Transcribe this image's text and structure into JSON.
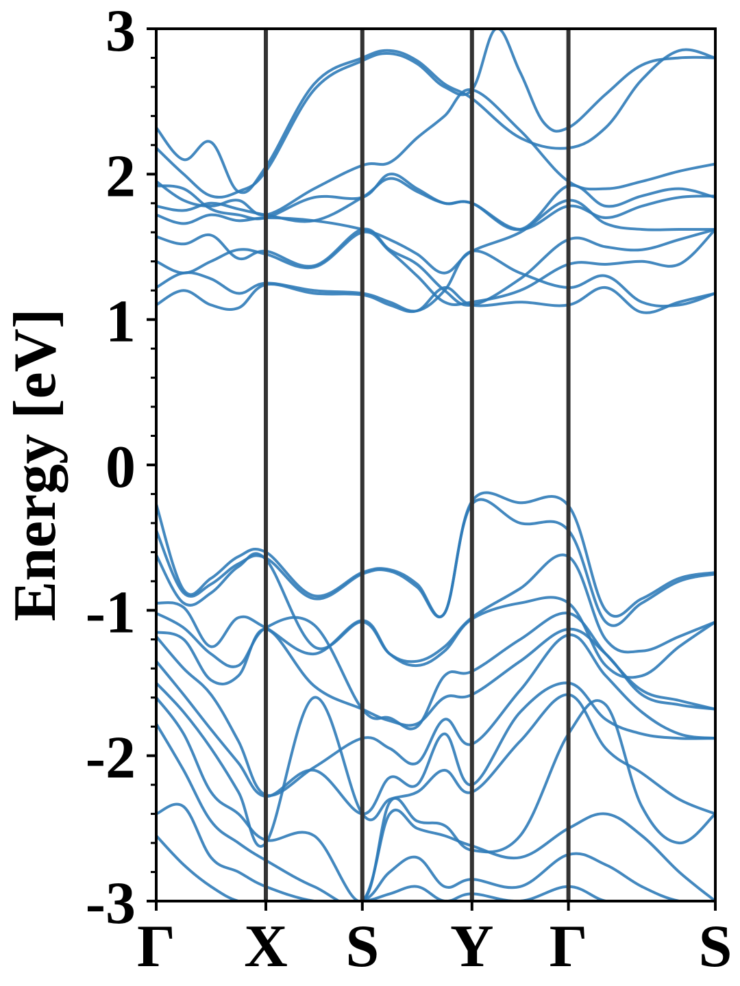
{
  "chart_data": {
    "type": "line",
    "title": "",
    "xlabel": "",
    "ylabel": "Energy [eV]",
    "ylim": [
      -3,
      3
    ],
    "yticks": [
      "3",
      "2",
      "1",
      "0",
      "-1",
      "-2",
      "-3"
    ],
    "ytick_values": [
      3,
      2,
      1,
      0,
      -1,
      -2,
      -3
    ],
    "yminor_step": 0.2,
    "xlim": [
      0,
      5.1
    ],
    "kpath": [
      {
        "label": "Γ",
        "x": 0
      },
      {
        "label": "X",
        "x": 1.0
      },
      {
        "label": "S",
        "x": 1.88
      },
      {
        "label": "Y",
        "x": 2.88
      },
      {
        "label": "Γ",
        "x": 3.76
      },
      {
        "label": "S",
        "x": 5.1
      }
    ],
    "grid": false,
    "colors": {
      "bands": "#2f7bb8",
      "kpoint_lines": "#333333",
      "axes": "#000000"
    },
    "series": [
      {
        "x": [
          0,
          0.25,
          0.5,
          0.75,
          1.0,
          1.44,
          1.88,
          2.13,
          2.38,
          2.63,
          2.88,
          3.32,
          3.76,
          4.1,
          4.43,
          4.77,
          5.1
        ],
        "values": [
          2.32,
          2.1,
          2.22,
          1.88,
          2.05,
          2.62,
          2.8,
          2.85,
          2.78,
          2.62,
          2.52,
          2.25,
          2.18,
          2.32,
          2.65,
          2.85,
          2.8
        ]
      },
      {
        "x": [
          0,
          0.25,
          0.5,
          0.75,
          1.0,
          1.44,
          1.88,
          2.13,
          2.38,
          2.63,
          2.88,
          3.1,
          3.32,
          3.54,
          3.76,
          4.1,
          4.43,
          4.77,
          5.1
        ],
        "values": [
          2.18,
          2.0,
          1.85,
          1.88,
          2.02,
          2.58,
          2.78,
          2.83,
          2.76,
          2.6,
          2.58,
          3.0,
          2.7,
          2.35,
          2.32,
          2.55,
          2.75,
          2.8,
          2.8
        ]
      },
      {
        "x": [
          0,
          0.25,
          0.5,
          0.75,
          1.0,
          1.44,
          1.88,
          2.13,
          2.38,
          2.63,
          2.88,
          3.32,
          3.76,
          4.1,
          4.43,
          4.77,
          5.1
        ],
        "values": [
          1.95,
          1.82,
          1.78,
          1.82,
          1.72,
          1.9,
          2.06,
          2.08,
          2.25,
          2.4,
          2.58,
          2.3,
          1.95,
          1.9,
          1.95,
          2.02,
          2.07
        ]
      },
      {
        "x": [
          0,
          0.25,
          0.5,
          0.75,
          1.0,
          1.44,
          1.88,
          2.13,
          2.38,
          2.63,
          2.88,
          3.32,
          3.76,
          4.1,
          4.43,
          4.77,
          5.1
        ],
        "values": [
          1.92,
          1.9,
          1.76,
          1.72,
          1.7,
          1.84,
          1.84,
          2.0,
          1.9,
          1.8,
          1.8,
          1.62,
          1.92,
          1.78,
          1.85,
          1.9,
          1.84
        ]
      },
      {
        "x": [
          0,
          0.25,
          0.5,
          0.75,
          1.0,
          1.44,
          1.88,
          2.13,
          2.38,
          2.63,
          2.88,
          3.32,
          3.76,
          4.1,
          4.43,
          4.77,
          5.1
        ],
        "values": [
          1.78,
          1.75,
          1.8,
          1.76,
          1.72,
          1.68,
          1.84,
          1.97,
          1.88,
          1.8,
          1.8,
          1.62,
          1.78,
          1.7,
          1.78,
          1.84,
          1.85
        ]
      },
      {
        "x": [
          0,
          0.25,
          0.5,
          0.75,
          1.0,
          1.44,
          1.88,
          2.13,
          2.38,
          2.63,
          2.88,
          3.32,
          3.76,
          4.1,
          4.43,
          4.77,
          5.1
        ],
        "values": [
          1.72,
          1.66,
          1.72,
          1.68,
          1.7,
          1.68,
          1.62,
          1.55,
          1.45,
          1.32,
          1.47,
          1.6,
          1.82,
          1.66,
          1.62,
          1.62,
          1.62
        ]
      },
      {
        "x": [
          0,
          0.25,
          0.5,
          0.75,
          1.0,
          1.44,
          1.88,
          2.13,
          2.38,
          2.63,
          2.88,
          3.32,
          3.76,
          4.1,
          4.43,
          4.77,
          5.1
        ],
        "values": [
          1.57,
          1.52,
          1.58,
          1.42,
          1.47,
          1.37,
          1.62,
          1.48,
          1.38,
          1.2,
          1.1,
          1.28,
          1.55,
          1.5,
          1.48,
          1.55,
          1.62
        ]
      },
      {
        "x": [
          0,
          0.25,
          0.5,
          0.75,
          1.0,
          1.44,
          1.88,
          2.13,
          2.38,
          2.63,
          2.88,
          3.32,
          3.76,
          4.1,
          4.43,
          4.77,
          5.1
        ],
        "values": [
          1.4,
          1.32,
          1.4,
          1.48,
          1.45,
          1.36,
          1.6,
          1.47,
          1.3,
          1.12,
          1.12,
          1.2,
          1.38,
          1.38,
          1.4,
          1.38,
          1.62
        ]
      },
      {
        "x": [
          0,
          0.25,
          0.5,
          0.75,
          1.0,
          1.44,
          1.88,
          2.13,
          2.38,
          2.63,
          2.88,
          3.32,
          3.76,
          4.1,
          4.43,
          4.77,
          5.1
        ],
        "values": [
          1.22,
          1.32,
          1.28,
          1.18,
          1.25,
          1.2,
          1.18,
          1.12,
          1.06,
          1.2,
          1.47,
          1.32,
          1.22,
          1.3,
          1.12,
          1.1,
          1.18
        ]
      },
      {
        "x": [
          0,
          0.25,
          0.5,
          0.75,
          1.0,
          1.44,
          1.88,
          2.13,
          2.38,
          2.63,
          2.88,
          3.32,
          3.76,
          4.1,
          4.43,
          4.77,
          5.1
        ],
        "values": [
          1.1,
          1.2,
          1.1,
          1.08,
          1.24,
          1.18,
          1.17,
          1.1,
          1.06,
          1.22,
          1.1,
          1.12,
          1.1,
          1.22,
          1.05,
          1.12,
          1.18
        ]
      },
      {
        "x": [
          0,
          0.25,
          0.5,
          0.75,
          1.0,
          1.44,
          1.88,
          2.13,
          2.38,
          2.63,
          2.88,
          3.32,
          3.76,
          4.1,
          4.43,
          4.77,
          5.1
        ],
        "values": [
          -0.27,
          -0.86,
          -0.78,
          -0.63,
          -0.6,
          -0.9,
          -0.74,
          -0.72,
          -0.82,
          -1.02,
          -0.25,
          -0.26,
          -0.28,
          -1.0,
          -0.92,
          -0.78,
          -0.74
        ]
      },
      {
        "x": [
          0,
          0.25,
          0.5,
          0.75,
          1.0,
          1.44,
          1.88,
          2.13,
          2.38,
          2.63,
          2.88,
          3.32,
          3.76,
          4.1,
          4.43,
          4.77,
          5.1
        ],
        "values": [
          -0.45,
          -0.88,
          -0.82,
          -0.68,
          -0.64,
          -0.92,
          -0.75,
          -0.73,
          -0.84,
          -1.02,
          -0.27,
          -0.4,
          -0.45,
          -1.08,
          -0.95,
          -0.8,
          -0.75
        ]
      },
      {
        "x": [
          0,
          0.25,
          0.5,
          0.75,
          1.0,
          1.44,
          1.88,
          2.13,
          2.38,
          2.63,
          2.88,
          3.32,
          3.76,
          4.1,
          4.43,
          4.77,
          5.1
        ],
        "values": [
          -0.62,
          -0.95,
          -0.88,
          -0.7,
          -0.65,
          -1.25,
          -1.08,
          -1.3,
          -1.35,
          -1.25,
          -1.05,
          -0.85,
          -0.63,
          -1.2,
          -1.28,
          -1.18,
          -1.08
        ]
      },
      {
        "x": [
          0,
          0.25,
          0.5,
          0.75,
          1.0,
          1.44,
          1.88,
          2.13,
          2.38,
          2.63,
          2.88,
          3.32,
          3.76,
          4.1,
          4.43,
          4.77,
          5.1
        ],
        "values": [
          -0.95,
          -0.98,
          -1.25,
          -1.05,
          -1.12,
          -1.3,
          -1.07,
          -1.3,
          -1.38,
          -1.28,
          -1.06,
          -0.95,
          -0.95,
          -1.38,
          -1.45,
          -1.25,
          -1.08
        ]
      },
      {
        "x": [
          0,
          0.25,
          0.5,
          0.75,
          1.0,
          1.44,
          1.88,
          2.13,
          2.38,
          2.63,
          2.88,
          3.32,
          3.76,
          4.1,
          4.43,
          4.77,
          5.1
        ],
        "values": [
          -1.02,
          -1.12,
          -1.3,
          -1.38,
          -1.12,
          -1.1,
          -1.68,
          -1.74,
          -1.8,
          -1.45,
          -1.42,
          -1.2,
          -1.02,
          -1.3,
          -1.55,
          -1.62,
          -1.68
        ]
      },
      {
        "x": [
          0,
          0.25,
          0.5,
          0.75,
          1.0,
          1.44,
          1.88,
          2.13,
          2.38,
          2.63,
          2.88,
          3.32,
          3.76,
          4.1,
          4.43,
          4.77,
          5.1
        ],
        "values": [
          -1.15,
          -1.2,
          -1.48,
          -1.45,
          -1.13,
          -1.52,
          -1.68,
          -1.76,
          -1.78,
          -1.6,
          -1.58,
          -1.35,
          -1.13,
          -1.3,
          -1.58,
          -1.65,
          -1.68
        ]
      },
      {
        "x": [
          0,
          0.25,
          0.5,
          0.75,
          1.0,
          1.44,
          1.88,
          2.13,
          2.38,
          2.63,
          2.88,
          3.32,
          3.76,
          4.1,
          4.43,
          4.77,
          5.1
        ],
        "values": [
          -1.18,
          -1.4,
          -1.58,
          -1.9,
          -2.27,
          -2.08,
          -1.88,
          -1.95,
          -2.05,
          -1.75,
          -1.92,
          -1.55,
          -1.17,
          -1.45,
          -1.7,
          -1.85,
          -1.88
        ]
      },
      {
        "x": [
          0,
          0.25,
          0.5,
          0.75,
          1.0,
          1.44,
          1.88,
          2.13,
          2.38,
          2.63,
          2.88,
          3.32,
          3.76,
          4.1,
          4.43,
          4.77,
          5.1
        ],
        "values": [
          -1.35,
          -1.58,
          -1.82,
          -2.05,
          -2.28,
          -2.1,
          -2.4,
          -2.15,
          -2.2,
          -1.85,
          -2.2,
          -1.7,
          -1.5,
          -1.75,
          -1.85,
          -1.88,
          -1.88
        ]
      },
      {
        "x": [
          0,
          0.25,
          0.5,
          0.75,
          1.0,
          1.44,
          1.88,
          2.13,
          2.38,
          2.63,
          2.88,
          3.32,
          3.76,
          4.1,
          4.43,
          4.77,
          5.1
        ],
        "values": [
          -1.5,
          -1.7,
          -1.95,
          -2.25,
          -2.6,
          -1.6,
          -2.4,
          -2.3,
          -2.25,
          -2.1,
          -2.25,
          -1.9,
          -1.58,
          -1.95,
          -2.12,
          -2.3,
          -2.4
        ]
      },
      {
        "x": [
          0,
          0.25,
          0.5,
          0.75,
          1.0,
          1.44,
          1.88,
          2.13,
          2.38,
          2.63,
          2.88,
          3.32,
          3.76,
          4.1,
          4.43,
          4.77,
          5.1
        ],
        "values": [
          -1.6,
          -1.85,
          -2.25,
          -2.4,
          -2.58,
          -2.55,
          -3.0,
          -2.32,
          -2.45,
          -2.48,
          -2.65,
          -2.55,
          -1.85,
          -1.65,
          -2.35,
          -2.6,
          -2.4
        ]
      },
      {
        "x": [
          0,
          0.25,
          0.5,
          0.75,
          1.0,
          1.44,
          1.88,
          2.13,
          2.38,
          2.63,
          2.88,
          3.32,
          3.76,
          4.1,
          4.43,
          4.77,
          5.1
        ],
        "values": [
          -1.78,
          -2.1,
          -2.45,
          -2.6,
          -2.72,
          -2.9,
          -3.0,
          -2.4,
          -2.5,
          -2.55,
          -2.62,
          -2.7,
          -2.5,
          -2.4,
          -2.55,
          -2.8,
          -3.0
        ]
      },
      {
        "x": [
          0,
          0.25,
          0.5,
          0.75,
          1.0,
          1.44,
          1.88,
          2.13,
          2.38,
          2.63,
          2.88,
          3.32,
          3.76,
          4.1,
          4.43,
          4.77,
          5.1
        ],
        "values": [
          -2.4,
          -2.35,
          -2.7,
          -2.8,
          -2.9,
          -3.0,
          -3.0,
          -2.8,
          -2.7,
          -2.9,
          -2.85,
          -2.9,
          -2.68,
          -2.75,
          -2.9,
          -3.0,
          -3.0
        ]
      },
      {
        "x": [
          0,
          0.25,
          0.5,
          0.75,
          1.0,
          1.44,
          1.88,
          2.13,
          2.38,
          2.63,
          2.88,
          3.32,
          3.76,
          4.1,
          4.43,
          4.77,
          5.1
        ],
        "values": [
          -2.55,
          -2.75,
          -2.9,
          -3.0,
          -3.0,
          -3.0,
          -3.0,
          -2.95,
          -2.9,
          -3.0,
          -2.95,
          -3.0,
          -2.9,
          -3.0,
          -3.0,
          -3.0,
          -3.0
        ]
      }
    ]
  }
}
